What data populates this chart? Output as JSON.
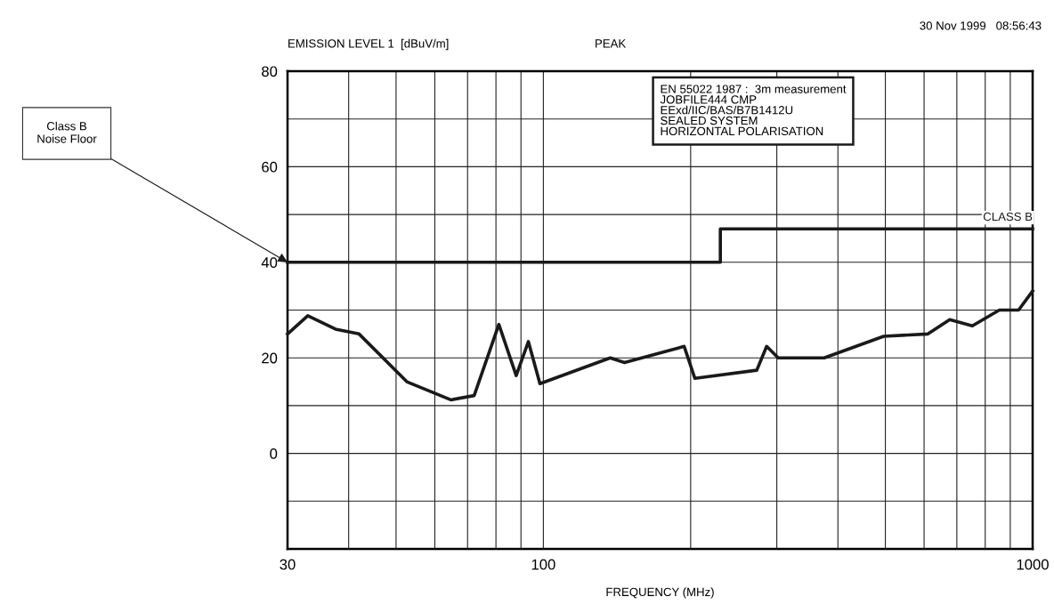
{
  "chart_data": {
    "type": "line",
    "subtitle": "EMISSION LEVEL 1  [dBuV/m]",
    "xlabel": "FREQUENCY (MHz)",
    "log": "x",
    "xlim": [
      30,
      1000
    ],
    "xticks": [
      30,
      {
        "value": 40,
        "label": null
      },
      {
        "value": 50,
        "label": null
      },
      {
        "value": 60,
        "label": null
      },
      {
        "value": 70,
        "label": null
      },
      {
        "value": 80,
        "label": null
      },
      {
        "value": 90,
        "label": null
      },
      100,
      {
        "value": 200,
        "label": null
      },
      {
        "value": 300,
        "label": null
      },
      {
        "value": 400,
        "label": null
      },
      {
        "value": 500,
        "label": null
      },
      {
        "value": 600,
        "label": null
      },
      {
        "value": 700,
        "label": null
      },
      {
        "value": 800,
        "label": null
      },
      {
        "value": 900,
        "label": null
      },
      1000
    ],
    "ylim": [
      -20,
      80
    ],
    "yticks": [
      {
        "value": -20,
        "label": null
      },
      {
        "value": -10,
        "label": null
      },
      0,
      {
        "value": 10,
        "label": null
      },
      20,
      {
        "value": 30,
        "label": null
      },
      40,
      {
        "value": 50,
        "label": null
      },
      60,
      {
        "value": 70,
        "label": null
      },
      80
    ],
    "grid": true,
    "legend": false,
    "series": [
      {
        "color": "#1a1a1a",
        "x": [
          30,
          33,
          37.6,
          42,
          52.6,
          64.7,
          72.2,
          81.1,
          88,
          93.2,
          98.4,
          137,
          146.5,
          194,
          204,
          273,
          286,
          302,
          375,
          496,
          611,
          677,
          753,
          855,
          936,
          1000
        ],
        "values": [
          25,
          28.8,
          26,
          25,
          15,
          11.2,
          12.1,
          27,
          16.3,
          23.4,
          14.6,
          20,
          19,
          22.4,
          15.7,
          17.4,
          22.4,
          20,
          20,
          24.5,
          25,
          28,
          26.7,
          30,
          30,
          34
        ]
      },
      {
        "name": "CLASS B",
        "color": "#1a1a1a",
        "x": [
          30,
          230,
          230,
          1000
        ],
        "values": [
          40,
          40,
          47,
          47
        ]
      }
    ],
    "annotations": [
      "PEAK",
      "30 Nov 1999   08:56:43",
      "EN 55022 1987 :  3m measurement\nJOBFILE444 CMP\nEExd/IIC/BAS/B7B1412U\nSEALED SYSTEM\nHORIZONTAL POLARISATION",
      "Class B\nNoise Floor"
    ]
  }
}
